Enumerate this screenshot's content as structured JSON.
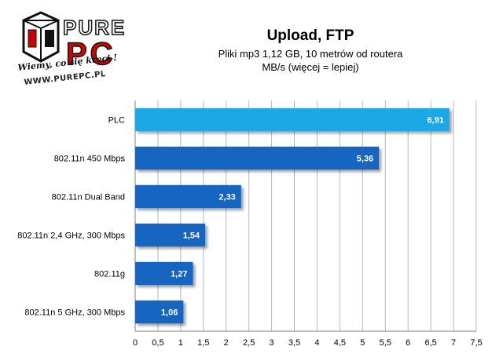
{
  "logo": {
    "brand_top": "PURE",
    "brand_bottom": "PC",
    "tagline": "Wiemy, co się kręci !",
    "url": "WWW.PUREPC.PL"
  },
  "chart_data": {
    "type": "bar",
    "orientation": "horizontal",
    "title": "Upload, FTP",
    "subtitle": "Pliki mp3 1,12 GB, 10 metrów od routera",
    "ylabel": "MB/s (więcej = lepiej)",
    "categories": [
      "PLC",
      "802.11n 450 Mbps",
      "802.11n Dual Band",
      "802.11n 2,4 GHz, 300 Mbps",
      "802.11g",
      "802.11n 5 GHz, 300 Mbps"
    ],
    "values": [
      6.91,
      5.36,
      2.33,
      1.54,
      1.27,
      1.06
    ],
    "value_labels": [
      "6,91",
      "5,36",
      "2,33",
      "1,54",
      "1,27",
      "1,06"
    ],
    "bar_colors": [
      "#1aa7e6",
      "#1565c0",
      "#1565c0",
      "#1565c0",
      "#1565c0",
      "#1565c0"
    ],
    "xlim": [
      0,
      7.5
    ],
    "ticks": [
      0,
      0.5,
      1,
      1.5,
      2,
      2.5,
      3,
      3.5,
      4,
      4.5,
      5,
      5.5,
      6,
      6.5,
      7,
      7.5
    ],
    "tick_labels": [
      "0",
      "0,5",
      "1",
      "1,5",
      "2",
      "2,5",
      "3",
      "3,5",
      "4",
      "4,5",
      "5",
      "5,5",
      "6",
      "6,5",
      "7",
      "7,5"
    ],
    "grid": true,
    "legend": "none"
  }
}
